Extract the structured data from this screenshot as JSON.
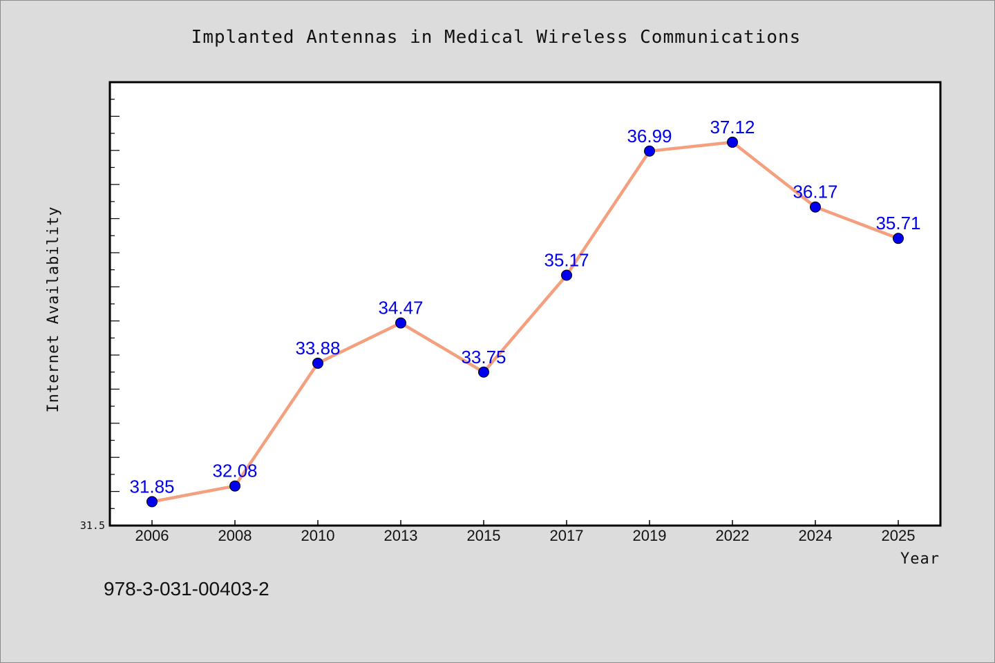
{
  "chart_data": {
    "type": "line",
    "title": "Implanted Antennas in Medical Wireless Communications",
    "xlabel": "Year",
    "ylabel": "Internet Availability",
    "categories": [
      "2006",
      "2008",
      "2010",
      "2013",
      "2015",
      "2017",
      "2019",
      "2022",
      "2024",
      "2025"
    ],
    "series": [
      {
        "values": [
          31.85,
          32.08,
          33.88,
          34.47,
          33.75,
          35.17,
          36.99,
          37.12,
          36.17,
          35.71
        ],
        "labels": [
          "31.85",
          "32.08",
          "33.88",
          "34.47",
          "33.75",
          "35.17",
          "36.99",
          "37.12",
          "36.17",
          "35.71"
        ]
      }
    ],
    "ylim": [
      31.5,
      38.0
    ],
    "ytick_label": "31.5",
    "grid": false,
    "legend": "none",
    "colors": {
      "line": "#f4a07f",
      "marker": "#0000ee",
      "data_label": "#0000ee",
      "plot_bg": "#ffffff",
      "page_bg": "#dcdcdc"
    }
  },
  "footer": {
    "isbn": "978-3-031-00403-2"
  }
}
